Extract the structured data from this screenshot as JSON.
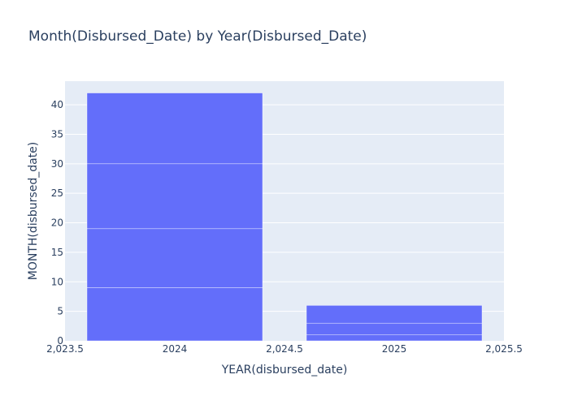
{
  "chart_data": {
    "type": "bar",
    "title": "Month(Disbursed_Date) by Year(Disbursed_Date)",
    "xlabel": "YEAR(disbursed_date)",
    "ylabel": "MONTH(disbursed_date)",
    "xlim": [
      2023.5,
      2025.5
    ],
    "ylim": [
      0,
      44
    ],
    "x_ticks": [
      {
        "value": 2023.5,
        "label": "2,023.5"
      },
      {
        "value": 2024,
        "label": "2024"
      },
      {
        "value": 2024.5,
        "label": "2,024.5"
      },
      {
        "value": 2025,
        "label": "2025"
      },
      {
        "value": 2025.5,
        "label": "2,025.5"
      }
    ],
    "y_ticks": [
      0,
      5,
      10,
      15,
      20,
      25,
      30,
      35,
      40
    ],
    "grid": true,
    "colors": {
      "bar": "#636efa",
      "plot_bg": "#e5ecf6",
      "grid": "#ffffff",
      "text": "#2a3f5f"
    },
    "bars": [
      {
        "x": 2024,
        "segments": [
          9,
          10,
          11,
          12
        ]
      },
      {
        "x": 2025,
        "segments": [
          1,
          2,
          3
        ]
      }
    ]
  }
}
